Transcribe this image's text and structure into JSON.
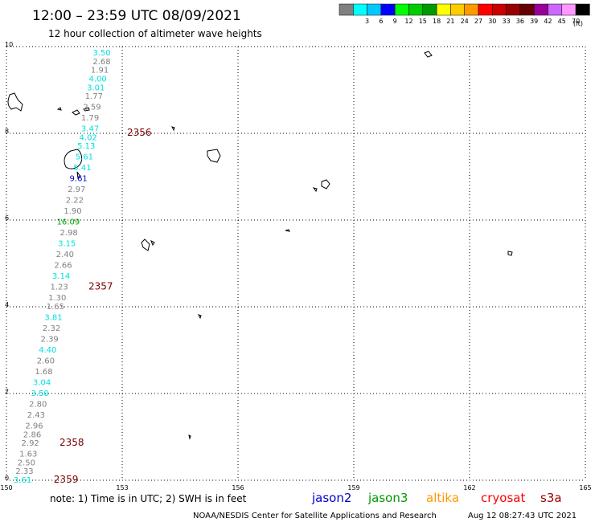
{
  "header": {
    "title": "12:00 – 23:59 UTC 08/09/2021",
    "subtitle": "12 hour collection of altimeter wave heights"
  },
  "scale": {
    "unit": "(ft)",
    "bins": [
      {
        "label": "",
        "color": "#808080"
      },
      {
        "label": "3",
        "color": "#00ffff"
      },
      {
        "label": "6",
        "color": "#00c8ff"
      },
      {
        "label": "9",
        "color": "#0000ff"
      },
      {
        "label": "12",
        "color": "#00ff00"
      },
      {
        "label": "15",
        "color": "#00cc00"
      },
      {
        "label": "18",
        "color": "#009900"
      },
      {
        "label": "21",
        "color": "#ffff00"
      },
      {
        "label": "24",
        "color": "#ffcc00"
      },
      {
        "label": "27",
        "color": "#ff9900"
      },
      {
        "label": "30",
        "color": "#ff0000"
      },
      {
        "label": "33",
        "color": "#cc0000"
      },
      {
        "label": "36",
        "color": "#990000"
      },
      {
        "label": "39",
        "color": "#660000"
      },
      {
        "label": "42",
        "color": "#990099"
      },
      {
        "label": "45",
        "color": "#cc66ff"
      },
      {
        "label": "70",
        "color": "#ff99ff"
      },
      {
        "label": "",
        "color": "#000000"
      }
    ]
  },
  "axes": {
    "lon_ticks": [
      "150",
      "153",
      "156",
      "159",
      "162",
      "165"
    ],
    "lat_ticks": [
      "0",
      "2",
      "4",
      "6",
      "8",
      "10"
    ],
    "lon_range": [
      150,
      165
    ],
    "lat_range": [
      0,
      10
    ]
  },
  "wave_colors": {
    "low": "#808080",
    "mid": "#00e0e0",
    "blue": "#0000cc",
    "green": "#00aa00"
  },
  "wave_labels": [
    {
      "text": "3.50",
      "lon": 152.7,
      "lat": 9.85,
      "level": "mid"
    },
    {
      "text": "2.68",
      "lon": 152.7,
      "lat": 9.65,
      "level": "low"
    },
    {
      "text": "1.91",
      "lon": 152.65,
      "lat": 9.45,
      "level": "low"
    },
    {
      "text": "4.00",
      "lon": 152.6,
      "lat": 9.25,
      "level": "mid"
    },
    {
      "text": "3.01",
      "lon": 152.55,
      "lat": 9.05,
      "level": "mid"
    },
    {
      "text": "1.77",
      "lon": 152.5,
      "lat": 8.85,
      "level": "low"
    },
    {
      "text": "2.59",
      "lon": 152.45,
      "lat": 8.6,
      "level": "low"
    },
    {
      "text": "1.79",
      "lon": 152.4,
      "lat": 8.35,
      "level": "low"
    },
    {
      "text": "3.47",
      "lon": 152.4,
      "lat": 8.1,
      "level": "mid"
    },
    {
      "text": "4.02",
      "lon": 152.35,
      "lat": 7.9,
      "level": "mid"
    },
    {
      "text": "5.13",
      "lon": 152.3,
      "lat": 7.7,
      "level": "mid"
    },
    {
      "text": "5.61",
      "lon": 152.25,
      "lat": 7.45,
      "level": "mid"
    },
    {
      "text": "5.41",
      "lon": 152.2,
      "lat": 7.2,
      "level": "mid"
    },
    {
      "text": "9.61",
      "lon": 152.1,
      "lat": 6.95,
      "level": "blue"
    },
    {
      "text": "2.97",
      "lon": 152.05,
      "lat": 6.7,
      "level": "low"
    },
    {
      "text": "2.22",
      "lon": 152.0,
      "lat": 6.45,
      "level": "low"
    },
    {
      "text": "1.90",
      "lon": 151.95,
      "lat": 6.2,
      "level": "low"
    },
    {
      "text": "16.09",
      "lon": 151.9,
      "lat": 5.95,
      "level": "green"
    },
    {
      "text": "2.98",
      "lon": 151.85,
      "lat": 5.7,
      "level": "low"
    },
    {
      "text": "3.15",
      "lon": 151.8,
      "lat": 5.45,
      "level": "mid"
    },
    {
      "text": "2.40",
      "lon": 151.75,
      "lat": 5.2,
      "level": "low"
    },
    {
      "text": "2.66",
      "lon": 151.7,
      "lat": 4.95,
      "level": "low"
    },
    {
      "text": "3.14",
      "lon": 151.65,
      "lat": 4.7,
      "level": "mid"
    },
    {
      "text": "1.23",
      "lon": 151.6,
      "lat": 4.45,
      "level": "low"
    },
    {
      "text": "1.30",
      "lon": 151.55,
      "lat": 4.2,
      "level": "low"
    },
    {
      "text": "1.65",
      "lon": 151.5,
      "lat": 4.0,
      "level": "low"
    },
    {
      "text": "3.81",
      "lon": 151.45,
      "lat": 3.75,
      "level": "mid"
    },
    {
      "text": "2.32",
      "lon": 151.4,
      "lat": 3.5,
      "level": "low"
    },
    {
      "text": "2.39",
      "lon": 151.35,
      "lat": 3.25,
      "level": "low"
    },
    {
      "text": "4.40",
      "lon": 151.3,
      "lat": 3.0,
      "level": "mid"
    },
    {
      "text": "2.60",
      "lon": 151.25,
      "lat": 2.75,
      "level": "low"
    },
    {
      "text": "1.68",
      "lon": 151.2,
      "lat": 2.5,
      "level": "low"
    },
    {
      "text": "3.04",
      "lon": 151.15,
      "lat": 2.25,
      "level": "mid"
    },
    {
      "text": "3.50",
      "lon": 151.1,
      "lat": 2.0,
      "level": "mid"
    },
    {
      "text": "2.80",
      "lon": 151.05,
      "lat": 1.75,
      "level": "low"
    },
    {
      "text": "2.43",
      "lon": 151.0,
      "lat": 1.5,
      "level": "low"
    },
    {
      "text": "2.96",
      "lon": 150.95,
      "lat": 1.25,
      "level": "low"
    },
    {
      "text": "2.86",
      "lon": 150.9,
      "lat": 1.05,
      "level": "low"
    },
    {
      "text": "2.92",
      "lon": 150.85,
      "lat": 0.85,
      "level": "low"
    },
    {
      "text": "1.63",
      "lon": 150.8,
      "lat": 0.6,
      "level": "low"
    },
    {
      "text": "2.50",
      "lon": 150.75,
      "lat": 0.4,
      "level": "low"
    },
    {
      "text": "2.33",
      "lon": 150.7,
      "lat": 0.2,
      "level": "low"
    },
    {
      "text": "3.61",
      "lon": 150.65,
      "lat": 0.0,
      "level": "mid"
    }
  ],
  "time_labels": [
    {
      "text": "2356",
      "lon": 153.0,
      "lat": 8.0
    },
    {
      "text": "2357",
      "lon": 152.0,
      "lat": 4.45
    },
    {
      "text": "2358",
      "lon": 151.25,
      "lat": 0.85
    },
    {
      "text": "2359",
      "lon": 151.1,
      "lat": 0.0
    }
  ],
  "footer": {
    "note": "note: 1) Time is in UTC; 2) SWH is in feet",
    "satellites": [
      {
        "name": "jason2",
        "color": "#0000cc"
      },
      {
        "name": "jason3",
        "color": "#009900"
      },
      {
        "name": "altika",
        "color": "#ff9900"
      },
      {
        "name": "cryosat",
        "color": "#ff0000"
      },
      {
        "name": "s3a",
        "color": "#990000"
      }
    ],
    "credit": "NOAA/NESDIS Center for Satellite Applications and Research",
    "timestamp": "Aug 12 08:27:43 UTC 2021"
  }
}
